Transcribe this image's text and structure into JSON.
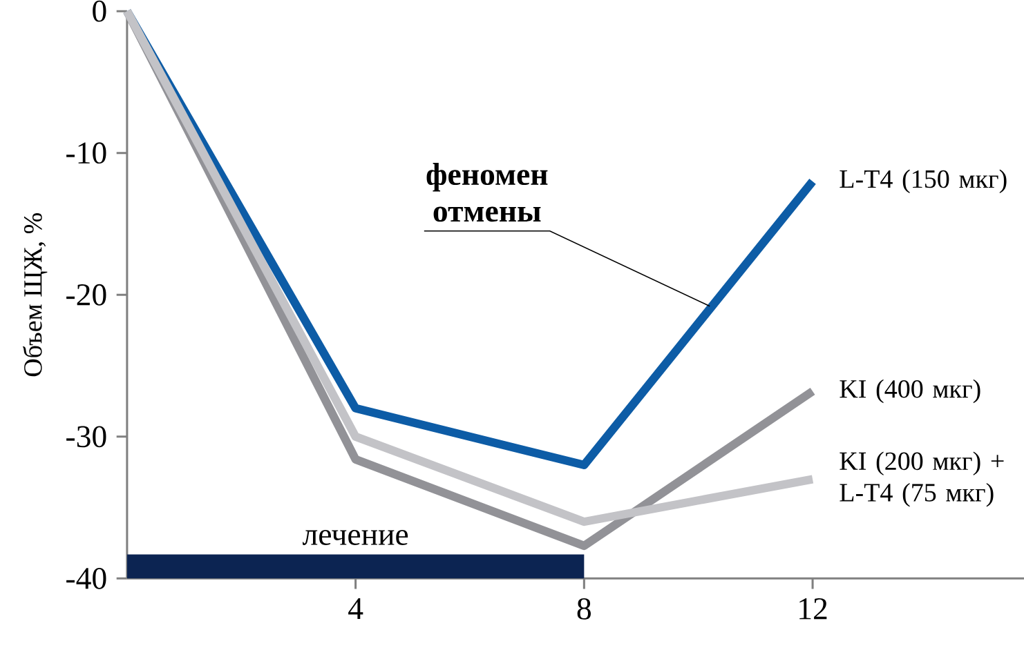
{
  "chart_data": {
    "type": "line",
    "ylabel": "Объем ЩЖ, %",
    "x": [
      0,
      4,
      8,
      12
    ],
    "xlim": [
      0,
      15.7
    ],
    "ylim": [
      -40,
      0
    ],
    "xticks": [
      4,
      8,
      12
    ],
    "yticks": [
      -40,
      -30,
      -20,
      -10,
      0
    ],
    "grid": false,
    "legend": false,
    "marker": "none",
    "line_style": "solid",
    "series": [
      {
        "name": "L-T4 (150 мкг)",
        "color": "#0d5ca6",
        "values": [
          0,
          -28,
          -32,
          -12
        ]
      },
      {
        "name": "KI (400 мкг)",
        "color": "#929297",
        "values": [
          0,
          -31.6,
          -37.7,
          -26.8
        ]
      },
      {
        "name": "KI (200 мкг) + L-T4 (75 мкг)",
        "color": "#c3c3c7",
        "values": [
          0,
          -30,
          -36,
          -33
        ]
      }
    ],
    "bands": [
      {
        "axis": "x",
        "from": 0,
        "to": 8,
        "label": "лечение",
        "color": "#0c2452"
      }
    ],
    "annotations": [
      {
        "text": "феномен отмены",
        "x": 10.2,
        "y": -20.8
      }
    ]
  }
}
